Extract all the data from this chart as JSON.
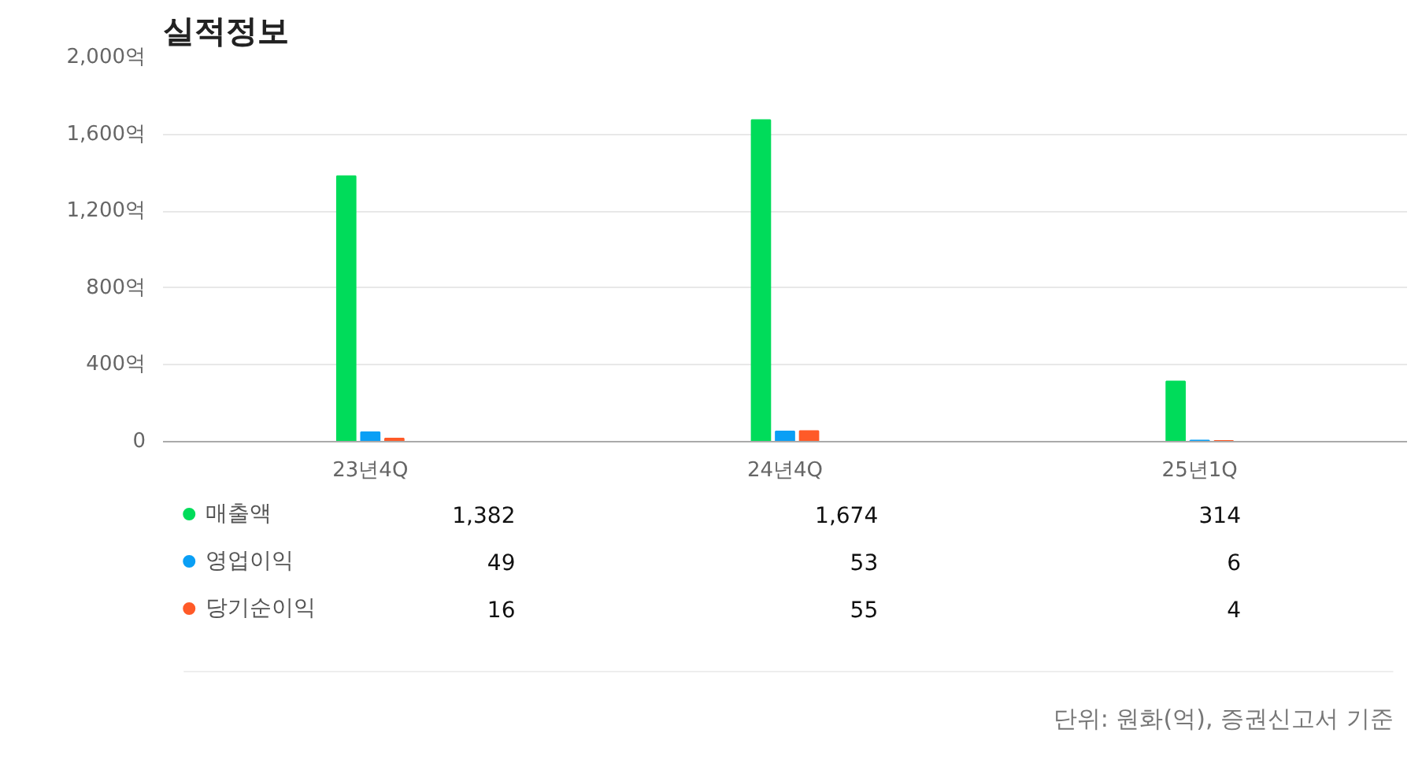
{
  "chart_data": {
    "type": "bar",
    "title": "실적정보",
    "categories": [
      "23년4Q",
      "24년4Q",
      "25년1Q"
    ],
    "series": [
      {
        "name": "매출액",
        "color": "#00dc5a",
        "values": [
          1382,
          1674,
          314
        ],
        "value_labels": [
          "1,382",
          "1,674",
          "314"
        ]
      },
      {
        "name": "영업이익",
        "color": "#0a9ff5",
        "values": [
          49,
          53,
          6
        ],
        "value_labels": [
          "49",
          "53",
          "6"
        ]
      },
      {
        "name": "당기순이익",
        "color": "#ff5a28",
        "values": [
          16,
          55,
          4
        ],
        "value_labels": [
          "16",
          "55",
          "4"
        ]
      }
    ],
    "ylim": [
      0,
      2000
    ],
    "yticks": [
      {
        "value": 0,
        "label": "0"
      },
      {
        "value": 400,
        "label": "400억"
      },
      {
        "value": 800,
        "label": "800억"
      },
      {
        "value": 1200,
        "label": "1,200억"
      },
      {
        "value": 1600,
        "label": "1,600억"
      },
      {
        "value": 2000,
        "label": "2,000억"
      }
    ],
    "grid": "y",
    "legend": "bottom",
    "annotations": [
      "단위: 원화(억), 증권신고서 기준"
    ]
  }
}
